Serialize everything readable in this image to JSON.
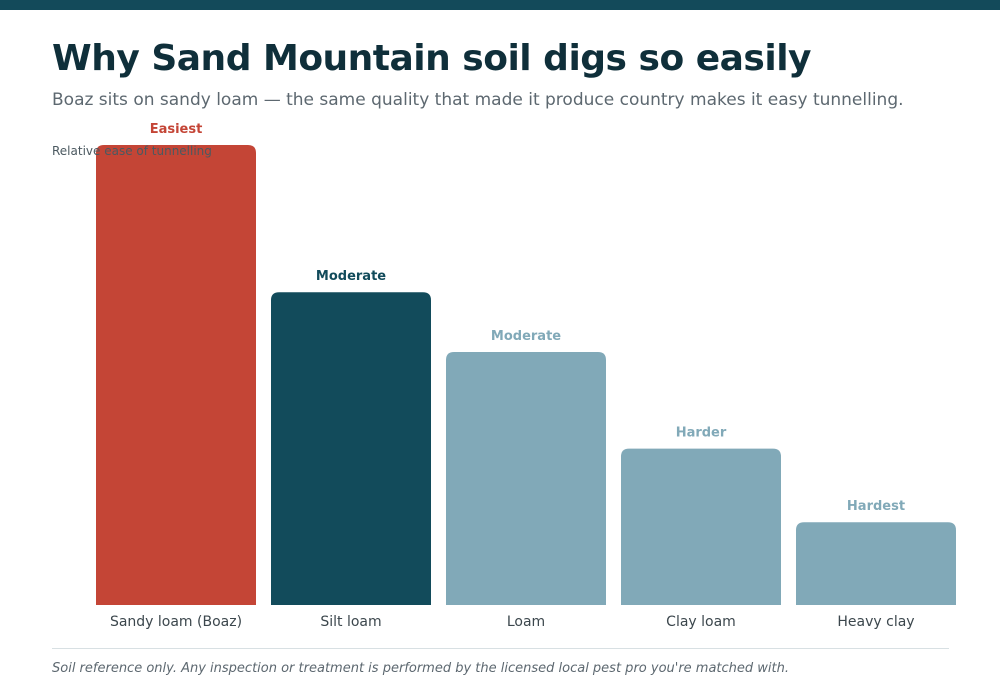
{
  "title": "Why Sand Mountain soil digs so easily",
  "subtitle": "Boaz sits on sandy loam — the same quality that made it produce country makes it easy tunnelling.",
  "footnote": "Soil reference only. Any inspection or treatment is performed by the licensed local pest pro you're matched with.",
  "chart_data": {
    "type": "bar",
    "title": "Why Sand Mountain soil digs so easily",
    "ylabel": "Relative ease of tunnelling",
    "xlabel": "",
    "ylim": [
      0,
      100
    ],
    "grid": false,
    "categories": [
      "Sandy loam (Boaz)",
      "Silt loam",
      "Loam",
      "Clay loam",
      "Heavy clay"
    ],
    "values": [
      100,
      68,
      55,
      34,
      18
    ],
    "labels": [
      "Easiest",
      "Moderate",
      "Moderate",
      "Harder",
      "Hardest"
    ],
    "colors": [
      "#c44536",
      "#124b5b",
      "#81a9b8",
      "#81a9b8",
      "#81a9b8"
    ],
    "label_colors": [
      "#c44536",
      "#124b5b",
      "#81a9b8",
      "#81a9b8",
      "#81a9b8"
    ]
  }
}
